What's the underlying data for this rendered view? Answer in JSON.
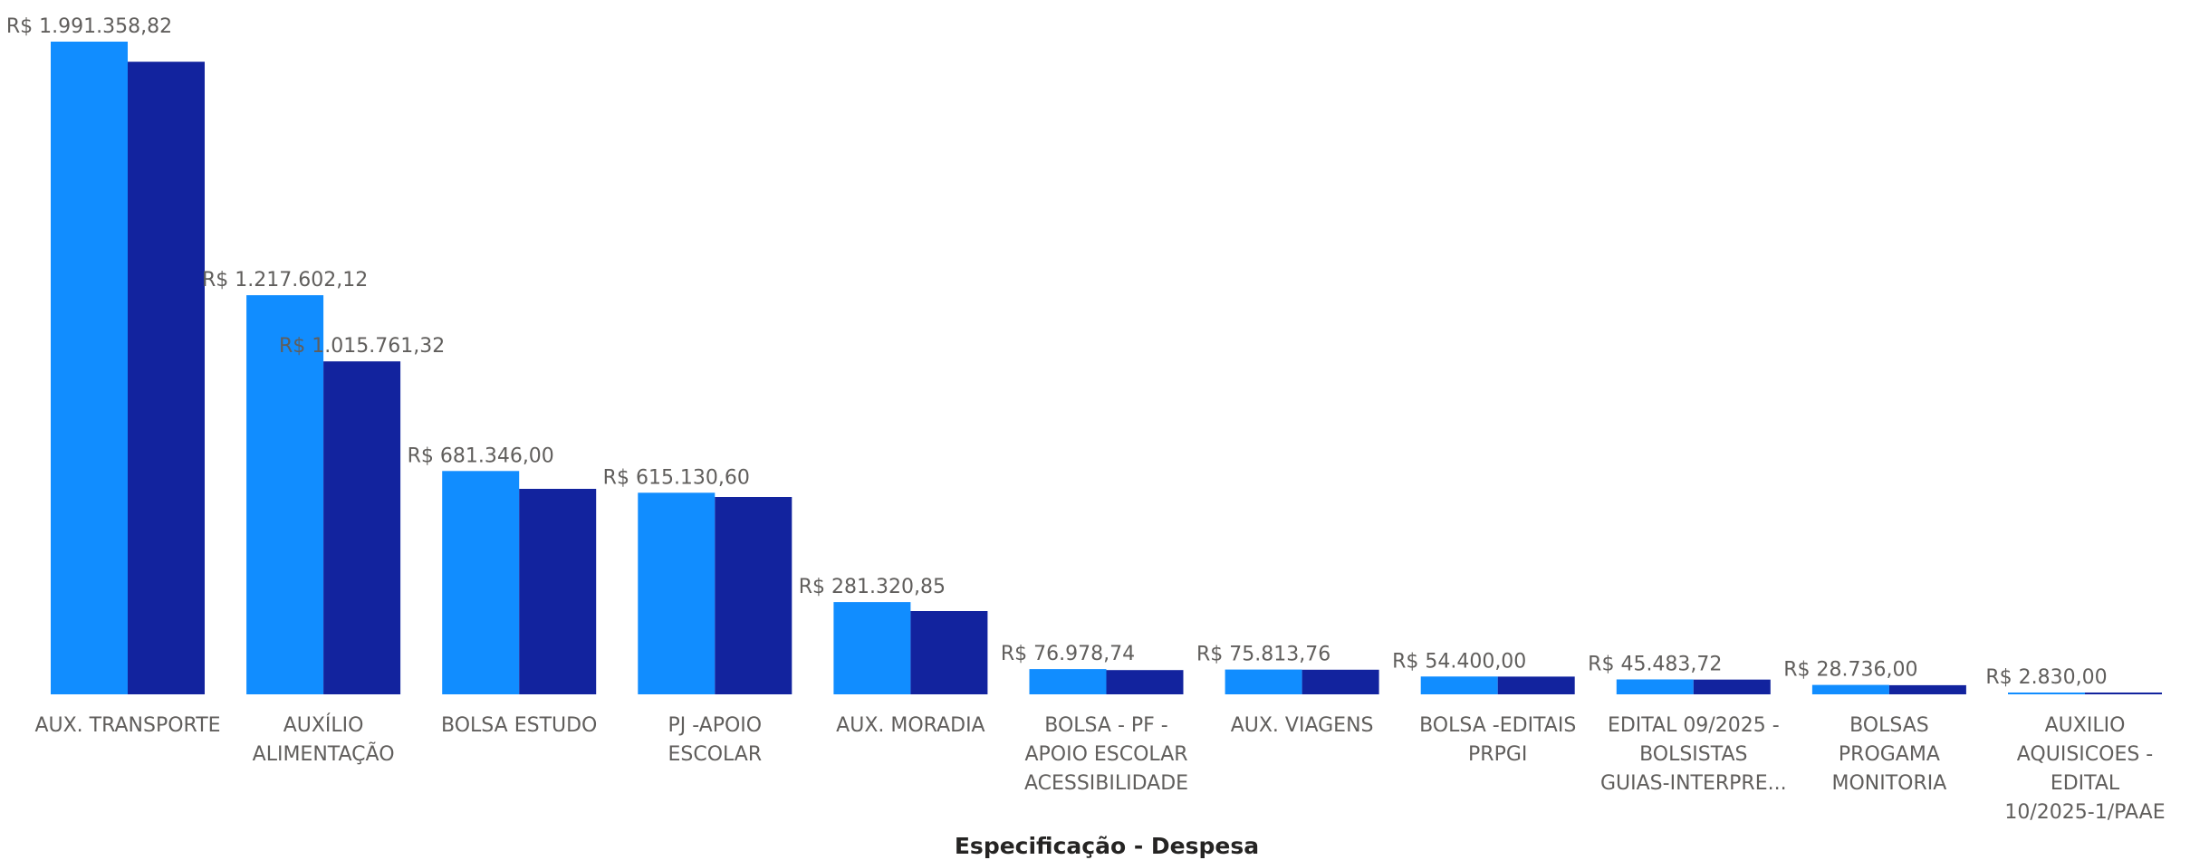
{
  "chart_data": {
    "type": "bar",
    "title": "",
    "xlabel": "Especificação - Despesa",
    "ylabel": "",
    "ylim": [
      0,
      2000000
    ],
    "grid": false,
    "legend": "none",
    "colors": {
      "series_1": "#118dff",
      "series_2": "#12239e"
    },
    "categories": [
      [
        "AUX. TRANSPORTE"
      ],
      [
        "AUXÍLIO",
        "ALIMENTAÇÃO"
      ],
      [
        "BOLSA ESTUDO"
      ],
      [
        "PJ -APOIO",
        "ESCOLAR"
      ],
      [
        "AUX. MORADIA"
      ],
      [
        "BOLSA - PF -",
        "APOIO ESCOLAR",
        "ACESSIBILIDADE"
      ],
      [
        "AUX. VIAGENS"
      ],
      [
        "BOLSA -EDITAIS",
        "PRPGI"
      ],
      [
        "EDITAL 09/2025 -",
        "BOLSISTAS",
        "GUIAS-INTERPRE..."
      ],
      [
        "BOLSAS",
        "PROGAMA",
        "MONITORIA"
      ],
      [
        "AUXILIO",
        "AQUISICOES -",
        "EDITAL",
        "10/2025-1/PAAE"
      ]
    ],
    "series": [
      {
        "values": [
          1991358.82,
          1217602.12,
          681346.0,
          615130.6,
          281320.85,
          76978.74,
          75813.76,
          54400.0,
          45483.72,
          28736.0,
          2830.0
        ],
        "labels": [
          "R$ 1.991.358,82",
          "R$ 1.217.602,12",
          "R$ 681.346,00",
          "R$ 615.130,60",
          "R$ 281.320,85",
          "R$ 76.978,74",
          "R$ 75.813,76",
          "R$ 54.400,00",
          "R$ 45.483,72",
          "R$ 28.736,00",
          "R$ 2.830,00"
        ]
      },
      {
        "values": [
          1930000,
          1015761.32,
          627000,
          602000,
          254000,
          74000,
          75000,
          54000,
          45000,
          28000,
          2500
        ],
        "labels": [
          "",
          "R$ 1.015.761,32",
          "",
          "",
          "",
          "",
          "",
          "",
          "",
          "",
          ""
        ]
      }
    ]
  }
}
